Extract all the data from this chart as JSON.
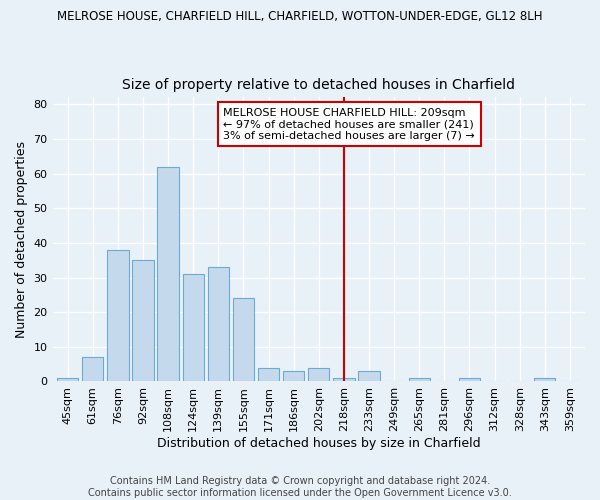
{
  "title": "MELROSE HOUSE, CHARFIELD HILL, CHARFIELD, WOTTON-UNDER-EDGE, GL12 8LH",
  "subtitle": "Size of property relative to detached houses in Charfield",
  "xlabel": "Distribution of detached houses by size in Charfield",
  "ylabel": "Number of detached properties",
  "categories": [
    "45sqm",
    "61sqm",
    "76sqm",
    "92sqm",
    "108sqm",
    "124sqm",
    "139sqm",
    "155sqm",
    "171sqm",
    "186sqm",
    "202sqm",
    "218sqm",
    "233sqm",
    "249sqm",
    "265sqm",
    "281sqm",
    "296sqm",
    "312sqm",
    "328sqm",
    "343sqm",
    "359sqm"
  ],
  "values": [
    1,
    7,
    38,
    35,
    62,
    31,
    33,
    24,
    4,
    3,
    4,
    1,
    3,
    0,
    1,
    0,
    1,
    0,
    0,
    1,
    0
  ],
  "bar_color": "#c5d9ed",
  "bar_edge_color": "#6aaad4",
  "vline_x": 11.0,
  "vline_color": "#cc0000",
  "annotation_text": "MELROSE HOUSE CHARFIELD HILL: 209sqm\n← 97% of detached houses are smaller (241)\n3% of semi-detached houses are larger (7) →",
  "annotation_box_color": "#ffffff",
  "annotation_box_edge": "#cc0000",
  "ylim": [
    0,
    82
  ],
  "yticks": [
    0,
    10,
    20,
    30,
    40,
    50,
    60,
    70,
    80
  ],
  "footer": "Contains HM Land Registry data © Crown copyright and database right 2024.\nContains public sector information licensed under the Open Government Licence v3.0.",
  "background_color": "#e8f0f8",
  "grid_color": "#ffffff",
  "title_fontsize": 8.5,
  "subtitle_fontsize": 10,
  "annotation_fontsize": 8,
  "axis_label_fontsize": 9,
  "tick_fontsize": 8,
  "footer_fontsize": 7
}
